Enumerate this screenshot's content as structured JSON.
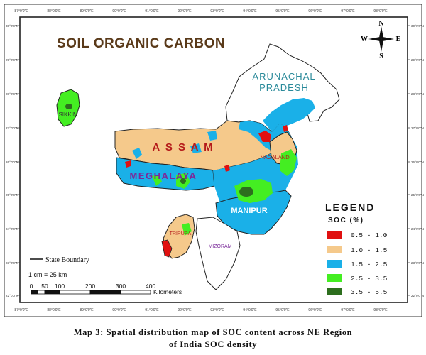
{
  "map": {
    "title": "SOIL ORGANIC CARBON",
    "lon_labels_top": [
      "87°0'0\"E",
      "88°0'0\"E",
      "89°0'0\"E",
      "90°0'0\"E",
      "91°0'0\"E",
      "92°0'0\"E",
      "93°0'0\"E",
      "94°0'0\"E",
      "95°0'0\"E",
      "96°0'0\"E",
      "97°0'0\"E",
      "98°0'0\"E"
    ],
    "lon_labels_bottom": [
      "87°0'0\"E",
      "88°0'0\"E",
      "89°0'0\"E",
      "90°0'0\"E",
      "91°0'0\"E",
      "92°0'0\"E",
      "93°0'0\"E",
      "94°0'0\"E",
      "95°0'0\"E",
      "96°0'0\"E",
      "97°0'0\"E",
      "98°0'0\"E"
    ],
    "lat_labels": [
      "30°0'0\"N",
      "29°0'0\"N",
      "28°0'0\"N",
      "27°0'0\"N",
      "26°0'0\"N",
      "25°0'0\"N",
      "24°0'0\"N",
      "23°0'0\"N",
      "22°0'0\"N"
    ],
    "compass": {
      "north": "N",
      "south": "S",
      "east": "E",
      "west": "W"
    },
    "states": {
      "arunachal_line1": "ARUNACHAL",
      "arunachal_line2": "PRADESH",
      "sikkim": "SIKKIM",
      "assam": "A S S A M",
      "nagaland": "NAGALAND",
      "meghalaya": "MEGHALAYA",
      "manipur": "MANIPUR",
      "tripura": "TRIPURA",
      "mizoram": "MIZORAM"
    },
    "legend": {
      "title": "LEGEND",
      "subtitle": "SOC (%)",
      "items": [
        {
          "label": "0.5  -  1.0",
          "color": "#e01010"
        },
        {
          "label": "1.0  -  1.5",
          "color": "#f5c98b"
        },
        {
          "label": "1.5  -  2.5",
          "color": "#1ab0e8"
        },
        {
          "label": "2.5  -  3.5",
          "color": "#44ee22"
        },
        {
          "label": "3.5  -  5.5",
          "color": "#2d6e1e"
        }
      ]
    },
    "boundary_label": "State Boundary",
    "scale_ratio": "1 cm = 25 km",
    "scale_ticks": [
      "0",
      "50",
      "100",
      "200",
      "300",
      "400"
    ],
    "scale_unit": "Kilometers",
    "colors": {
      "sea_bg": "#ffffff",
      "outside_nation": "#ffffff",
      "neutral_state": "#ffffff",
      "title_color": "#5a3a1a",
      "state_label_blue": "#2a8a9a",
      "state_label_red": "#b51a1a",
      "state_label_purple": "#7a2a9a"
    }
  },
  "caption": {
    "line1": "Map 3: Spatial distribution map of SOC content across NE Region",
    "line2": "of India SOC density"
  }
}
